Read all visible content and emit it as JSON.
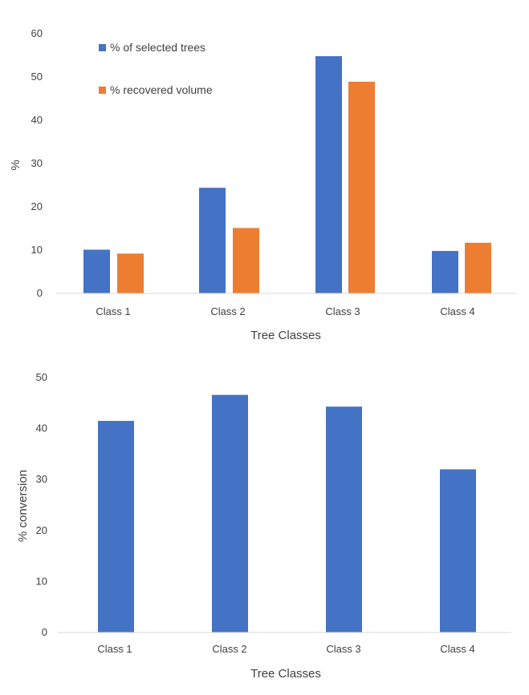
{
  "chart_data": [
    {
      "type": "bar",
      "categories": [
        "Class 1",
        "Class 2",
        "Class 3",
        "Class 4"
      ],
      "series": [
        {
          "name": "% of selected trees",
          "values": [
            10.1,
            24.4,
            54.8,
            9.8
          ],
          "color": "#4472C4"
        },
        {
          "name": "% recovered volume",
          "values": [
            9.2,
            15.1,
            48.9,
            11.7
          ],
          "color": "#ED7D31"
        }
      ],
      "title": "",
      "xlabel": "Tree Classes",
      "ylabel": "%",
      "ylim": [
        0,
        60
      ],
      "yticks": [
        "0",
        "10",
        "20",
        "30",
        "40",
        "50",
        "60"
      ],
      "grid": false,
      "legend": "top-left"
    },
    {
      "type": "bar",
      "categories": [
        "Class 1",
        "Class 2",
        "Class 3",
        "Class 4"
      ],
      "series": [
        {
          "values": [
            41.5,
            46.6,
            44.3,
            32.0
          ],
          "color": "#4472C4"
        }
      ],
      "title": "",
      "xlabel": "Tree Classes",
      "ylabel": "% conversion",
      "ylim": [
        0,
        50
      ],
      "yticks": [
        "0",
        "10",
        "20",
        "30",
        "40",
        "50"
      ],
      "grid": false,
      "legend": "none"
    }
  ]
}
